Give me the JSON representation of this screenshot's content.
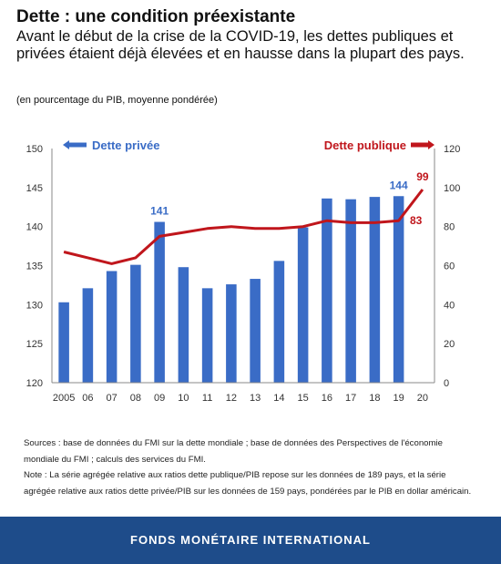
{
  "header": {
    "title": "Dette : une condition préexistante",
    "subtitle": "Avant le début de la crise de la COVID-19, les dettes publiques et privées étaient déjà élevées et en hausse dans la plupart des pays.",
    "unit_note": "(en pourcentage du PIB, moyenne pondérée)"
  },
  "notes": {
    "sources_line1": "Sources : base de données du FMI sur la dette mondiale ; base de données des Perspectives de l'économie",
    "sources_line2": "mondiale du FMI ; calculs des services du FMI.",
    "note_line1": "Note : La série agrégée relative aux ratios dette publique/PIB repose sur les données de 189 pays, et la série",
    "note_line2": "agrégée relative aux ratios dette privée/PIB sur les données de 159 pays, pondérées par le PIB en dollar américain."
  },
  "footer": {
    "label": "FONDS MONÉTAIRE INTERNATIONAL"
  },
  "chart_data": {
    "type": "bar+line",
    "categories": [
      "2005",
      "06",
      "07",
      "08",
      "09",
      "10",
      "11",
      "12",
      "13",
      "14",
      "15",
      "16",
      "17",
      "18",
      "19",
      "20"
    ],
    "series": [
      {
        "name": "Dette privée",
        "type": "bar",
        "axis": "left",
        "color": "#3a6cc6",
        "values": [
          130.3,
          132.1,
          134.3,
          135.1,
          140.6,
          134.8,
          132.1,
          132.6,
          133.3,
          135.6,
          139.9,
          143.6,
          143.5,
          143.8,
          143.9,
          null
        ],
        "labels": {
          "09": "141",
          "19": "144"
        }
      },
      {
        "name": "Dette publique",
        "type": "line",
        "axis": "right",
        "color": "#c0161c",
        "values": [
          67,
          64,
          61,
          64,
          75,
          77,
          79,
          80,
          79,
          79,
          80,
          83,
          82,
          82,
          83,
          99
        ],
        "labels": {
          "19": "83",
          "20": "99"
        }
      }
    ],
    "yleft": {
      "lim": [
        120,
        150
      ],
      "ticks": [
        120,
        125,
        130,
        135,
        140,
        145,
        150
      ]
    },
    "yright": {
      "lim": [
        0,
        120
      ],
      "ticks": [
        0,
        20,
        40,
        60,
        80,
        100,
        120
      ]
    },
    "legend": {
      "left": "top-left",
      "right": "top-right"
    },
    "grid": false
  }
}
